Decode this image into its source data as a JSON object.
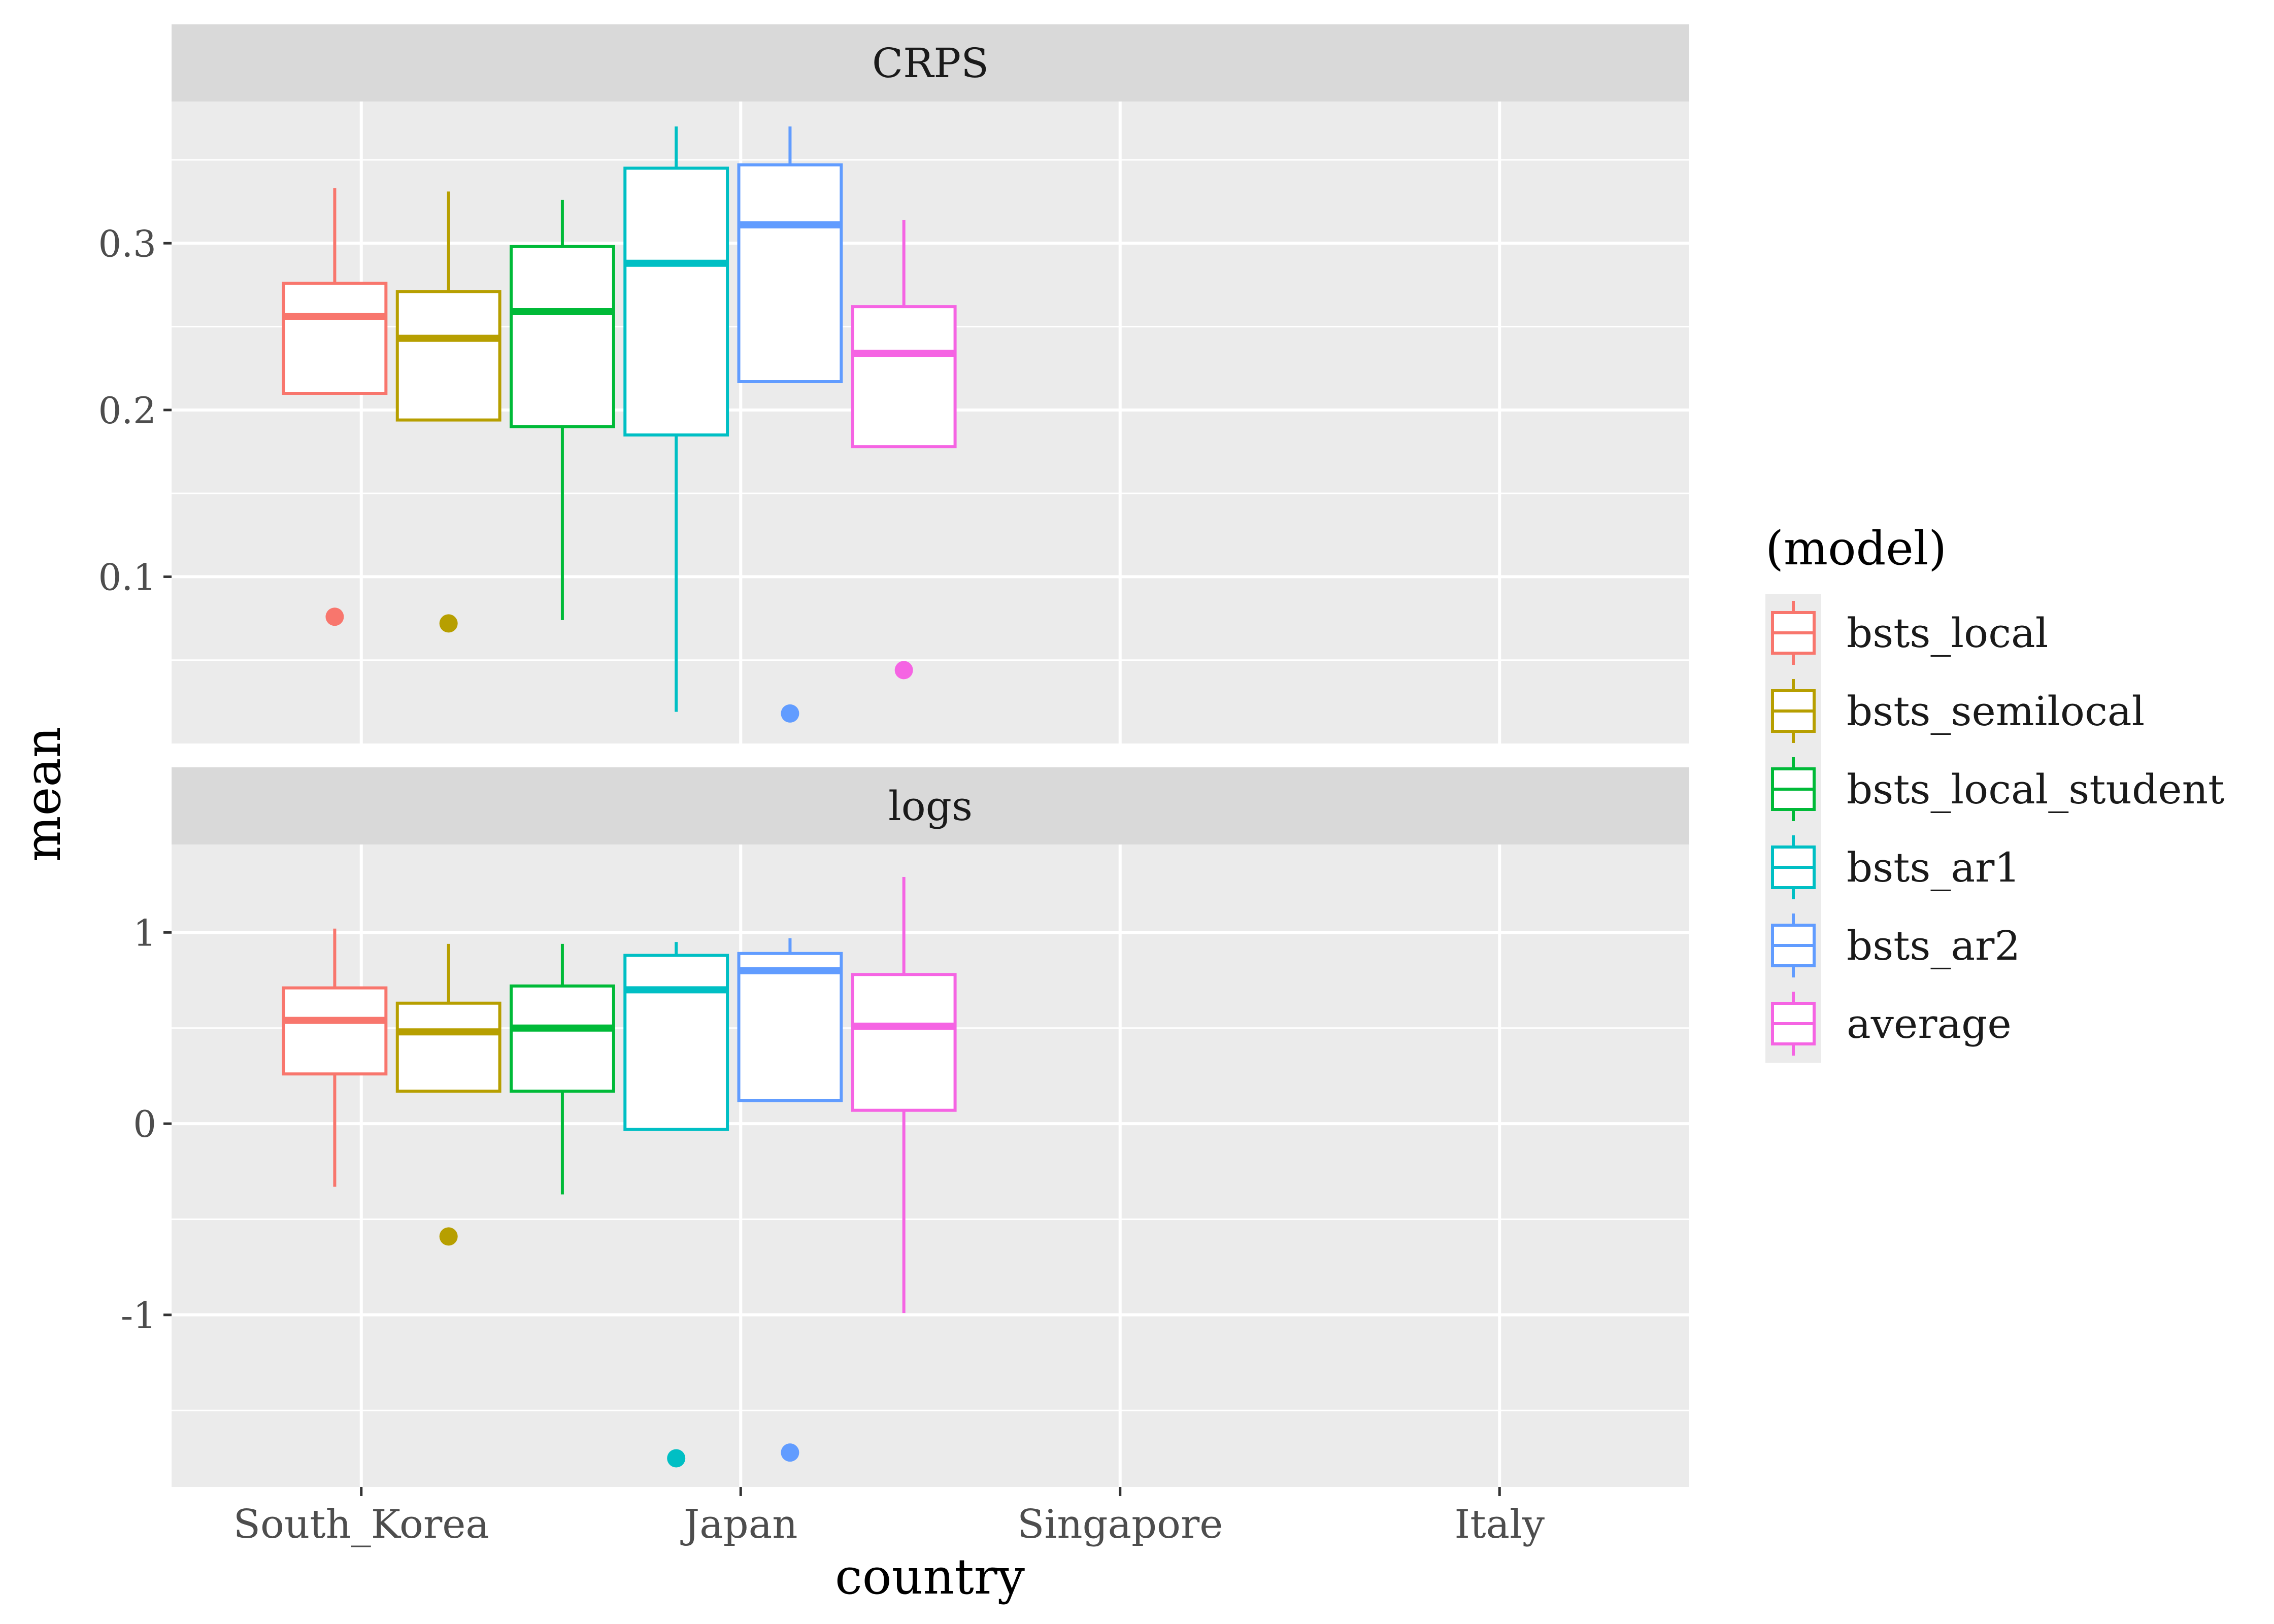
{
  "chart_data": {
    "type": "boxplot",
    "xlabel": "country",
    "ylabel": "mean",
    "x_categories": [
      "South_Korea",
      "Japan",
      "Singapore",
      "Italy"
    ],
    "legend": {
      "title": "(model)",
      "position": "right",
      "entries": [
        {
          "name": "bsts_local",
          "color": "#F8766D"
        },
        {
          "name": "bsts_semilocal",
          "color": "#B79F00"
        },
        {
          "name": "bsts_local_student",
          "color": "#00BA38"
        },
        {
          "name": "bsts_ar1",
          "color": "#00BFC4"
        },
        {
          "name": "bsts_ar2",
          "color": "#619CFF"
        },
        {
          "name": "average",
          "color": "#F564E3"
        }
      ]
    },
    "grid": true,
    "panels": [
      {
        "title": "CRPS",
        "ylim": [
          0.0,
          0.385
        ],
        "yticks": [
          0.1,
          0.2,
          0.3
        ],
        "ytick_labels": [
          "0.1",
          "0.2",
          "0.3"
        ],
        "boxes": [
          {
            "model": "bsts_local",
            "whisker_low": 0.21,
            "q1": 0.21,
            "median": 0.256,
            "q3": 0.276,
            "whisker_high": 0.333,
            "outliers": [
              0.076
            ]
          },
          {
            "model": "bsts_semilocal",
            "whisker_low": 0.194,
            "q1": 0.194,
            "median": 0.243,
            "q3": 0.271,
            "whisker_high": 0.331,
            "outliers": [
              0.072
            ]
          },
          {
            "model": "bsts_local_student",
            "whisker_low": 0.074,
            "q1": 0.19,
            "median": 0.259,
            "q3": 0.298,
            "whisker_high": 0.326,
            "outliers": []
          },
          {
            "model": "bsts_ar1",
            "whisker_low": 0.019,
            "q1": 0.185,
            "median": 0.288,
            "q3": 0.345,
            "whisker_high": 0.37,
            "outliers": []
          },
          {
            "model": "bsts_ar2",
            "whisker_low": 0.217,
            "q1": 0.217,
            "median": 0.311,
            "q3": 0.347,
            "whisker_high": 0.37,
            "outliers": [
              0.018
            ]
          },
          {
            "model": "average",
            "whisker_low": 0.178,
            "q1": 0.178,
            "median": 0.234,
            "q3": 0.262,
            "whisker_high": 0.314,
            "outliers": [
              0.044
            ]
          }
        ]
      },
      {
        "title": "logs",
        "ylim": [
          -1.9,
          1.46
        ],
        "yticks": [
          -1,
          0,
          1
        ],
        "ytick_labels": [
          "-1",
          "0",
          "1"
        ],
        "boxes": [
          {
            "model": "bsts_local",
            "whisker_low": -0.33,
            "q1": 0.26,
            "median": 0.54,
            "q3": 0.71,
            "whisker_high": 1.02,
            "outliers": []
          },
          {
            "model": "bsts_semilocal",
            "whisker_low": 0.17,
            "q1": 0.17,
            "median": 0.48,
            "q3": 0.63,
            "whisker_high": 0.94,
            "outliers": [
              -0.59
            ]
          },
          {
            "model": "bsts_local_student",
            "whisker_low": -0.37,
            "q1": 0.17,
            "median": 0.5,
            "q3": 0.72,
            "whisker_high": 0.94,
            "outliers": []
          },
          {
            "model": "bsts_ar1",
            "whisker_low": -0.03,
            "q1": -0.03,
            "median": 0.7,
            "q3": 0.88,
            "whisker_high": 0.95,
            "outliers": [
              -1.75
            ]
          },
          {
            "model": "bsts_ar2",
            "whisker_low": 0.12,
            "q1": 0.12,
            "median": 0.8,
            "q3": 0.89,
            "whisker_high": 0.97,
            "outliers": [
              -1.72
            ]
          },
          {
            "model": "average",
            "whisker_low": -0.99,
            "q1": 0.07,
            "median": 0.51,
            "q3": 0.78,
            "whisker_high": 1.29,
            "outliers": []
          }
        ]
      }
    ]
  }
}
